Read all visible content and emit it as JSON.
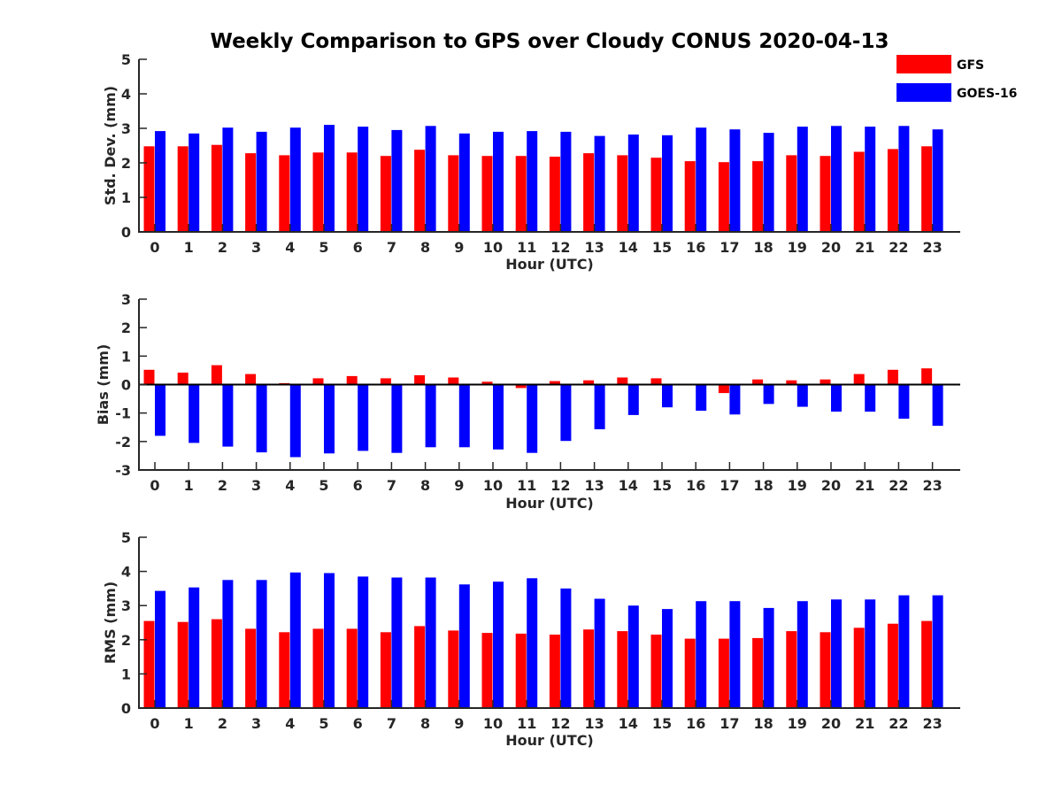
{
  "title": "Weekly Comparison to GPS over Cloudy CONUS 2020-04-13",
  "legend": {
    "placement": "top-right",
    "items": [
      {
        "name": "GFS",
        "color": "#ff0000"
      },
      {
        "name": "GOES-16",
        "color": "#0000ff"
      }
    ]
  },
  "chart_data": [
    {
      "type": "bar",
      "xlabel": "Hour (UTC)",
      "ylabel": "Std. Dev. (mm)",
      "ylim": [
        0,
        5
      ],
      "yticks": [
        0,
        1,
        2,
        3,
        4,
        5
      ],
      "grid": false,
      "categories": [
        "0",
        "1",
        "2",
        "3",
        "4",
        "5",
        "6",
        "7",
        "8",
        "9",
        "10",
        "11",
        "12",
        "13",
        "14",
        "15",
        "16",
        "17",
        "18",
        "19",
        "20",
        "21",
        "22",
        "23"
      ],
      "series": [
        {
          "name": "GFS",
          "color": "#ff0000",
          "values": [
            2.48,
            2.48,
            2.52,
            2.28,
            2.22,
            2.3,
            2.3,
            2.2,
            2.38,
            2.22,
            2.2,
            2.2,
            2.18,
            2.28,
            2.22,
            2.15,
            2.05,
            2.02,
            2.05,
            2.22,
            2.2,
            2.32,
            2.4,
            2.48
          ]
        },
        {
          "name": "GOES-16",
          "color": "#0000ff",
          "values": [
            2.92,
            2.85,
            3.02,
            2.9,
            3.02,
            3.1,
            3.05,
            2.95,
            3.07,
            2.85,
            2.9,
            2.92,
            2.9,
            2.78,
            2.82,
            2.8,
            3.02,
            2.97,
            2.87,
            3.05,
            3.07,
            3.05,
            3.07,
            2.97
          ]
        }
      ]
    },
    {
      "type": "bar",
      "xlabel": "Hour (UTC)",
      "ylabel": "Bias (mm)",
      "ylim": [
        -3,
        3
      ],
      "yticks": [
        -3,
        -2,
        -1,
        0,
        1,
        2,
        3
      ],
      "grid": false,
      "categories": [
        "0",
        "1",
        "2",
        "3",
        "4",
        "5",
        "6",
        "7",
        "8",
        "9",
        "10",
        "11",
        "12",
        "13",
        "14",
        "15",
        "16",
        "17",
        "18",
        "19",
        "20",
        "21",
        "22",
        "23"
      ],
      "series": [
        {
          "name": "GFS",
          "color": "#ff0000",
          "values": [
            0.52,
            0.42,
            0.68,
            0.37,
            0.05,
            0.22,
            0.3,
            0.22,
            0.33,
            0.25,
            0.1,
            -0.12,
            0.12,
            0.15,
            0.25,
            0.22,
            0.0,
            -0.3,
            0.18,
            0.15,
            0.18,
            0.37,
            0.52,
            0.57
          ]
        },
        {
          "name": "GOES-16",
          "color": "#0000ff",
          "values": [
            -1.8,
            -2.05,
            -2.18,
            -2.38,
            -2.55,
            -2.42,
            -2.33,
            -2.4,
            -2.2,
            -2.2,
            -2.28,
            -2.4,
            -1.98,
            -1.57,
            -1.07,
            -0.8,
            -0.92,
            -1.05,
            -0.68,
            -0.78,
            -0.95,
            -0.95,
            -1.2,
            -1.45
          ]
        }
      ]
    },
    {
      "type": "bar",
      "xlabel": "Hour (UTC)",
      "ylabel": "RMS (mm)",
      "ylim": [
        0,
        5
      ],
      "yticks": [
        0,
        1,
        2,
        3,
        4,
        5
      ],
      "grid": false,
      "categories": [
        "0",
        "1",
        "2",
        "3",
        "4",
        "5",
        "6",
        "7",
        "8",
        "9",
        "10",
        "11",
        "12",
        "13",
        "14",
        "15",
        "16",
        "17",
        "18",
        "19",
        "20",
        "21",
        "22",
        "23"
      ],
      "series": [
        {
          "name": "GFS",
          "color": "#ff0000",
          "values": [
            2.55,
            2.52,
            2.6,
            2.32,
            2.22,
            2.32,
            2.32,
            2.22,
            2.4,
            2.27,
            2.2,
            2.18,
            2.15,
            2.3,
            2.25,
            2.15,
            2.03,
            2.03,
            2.05,
            2.25,
            2.22,
            2.35,
            2.47,
            2.55
          ]
        },
        {
          "name": "GOES-16",
          "color": "#0000ff",
          "values": [
            3.43,
            3.53,
            3.75,
            3.75,
            3.97,
            3.95,
            3.85,
            3.82,
            3.82,
            3.62,
            3.7,
            3.8,
            3.5,
            3.2,
            3.0,
            2.9,
            3.13,
            3.13,
            2.93,
            3.13,
            3.18,
            3.18,
            3.3,
            3.3
          ]
        }
      ]
    }
  ]
}
